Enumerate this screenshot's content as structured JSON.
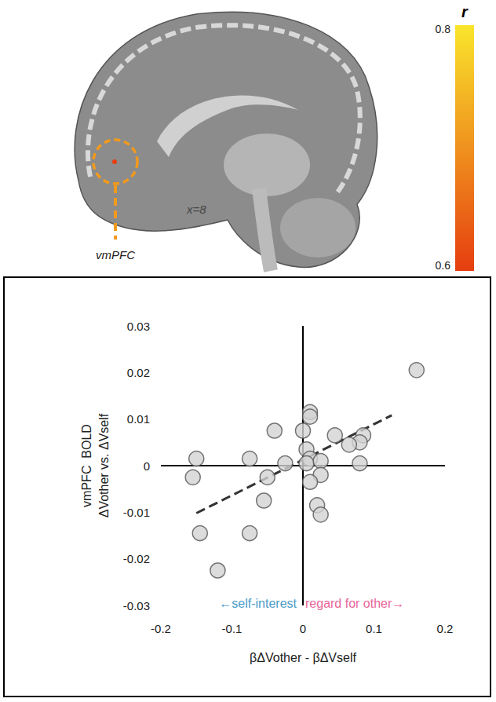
{
  "chart_data": {
    "type": "scatter",
    "xlabel": "βΔVother - βΔVself",
    "ylabel": "vmPFC  BOLD\nΔVother vs. ΔVself",
    "xlim": [
      -0.2,
      0.2
    ],
    "xticks": [
      -0.2,
      -0.1,
      0,
      0.1,
      0.2
    ],
    "ylim": [
      -0.03,
      0.03
    ],
    "yticks": [
      -0.03,
      -0.02,
      -0.01,
      0,
      0.01,
      0.02,
      0.03
    ],
    "grid": false,
    "series": [
      {
        "type": "scatter",
        "color": "#d3d3d3",
        "marker": "circle",
        "x": [
          0.16,
          0.085,
          0.08,
          0.065,
          0.08,
          0.045,
          0.01,
          0.01,
          0.0,
          0.005,
          0.01,
          0.005,
          0.025,
          0.025,
          0.01,
          0.02,
          0.025,
          -0.04,
          -0.025,
          -0.05,
          -0.055,
          -0.075,
          -0.075,
          -0.15,
          -0.155,
          -0.145,
          -0.12
        ],
        "values": [
          0.0205,
          0.0065,
          0.005,
          0.0045,
          0.0005,
          0.0065,
          0.0115,
          0.0105,
          0.0075,
          0.0035,
          0.0015,
          0.0005,
          0.001,
          -0.002,
          -0.0035,
          -0.0085,
          -0.0105,
          0.0075,
          0.0005,
          -0.0025,
          -0.0075,
          0.0015,
          -0.0145,
          0.0015,
          -0.0025,
          -0.0145,
          -0.0225
        ]
      },
      {
        "type": "line",
        "color": "#333333",
        "line_style": "dashed",
        "x": [
          -0.15,
          0.125
        ],
        "values": [
          -0.0102,
          0.0108
        ]
      }
    ],
    "annotations": [
      {
        "text": "←self-interest",
        "color": "#4a9cc9"
      },
      {
        "text": "regard for other→",
        "color": "#e8669a"
      }
    ]
  },
  "brain_panel": {
    "region_label": "vmPFC",
    "slice_label": "x=8",
    "colorbar": {
      "title": "r",
      "range": [
        0.6,
        0.8
      ],
      "ticks": [
        0.6,
        0.8
      ],
      "colors": [
        "#e63e10",
        "#f9e52c"
      ]
    }
  }
}
